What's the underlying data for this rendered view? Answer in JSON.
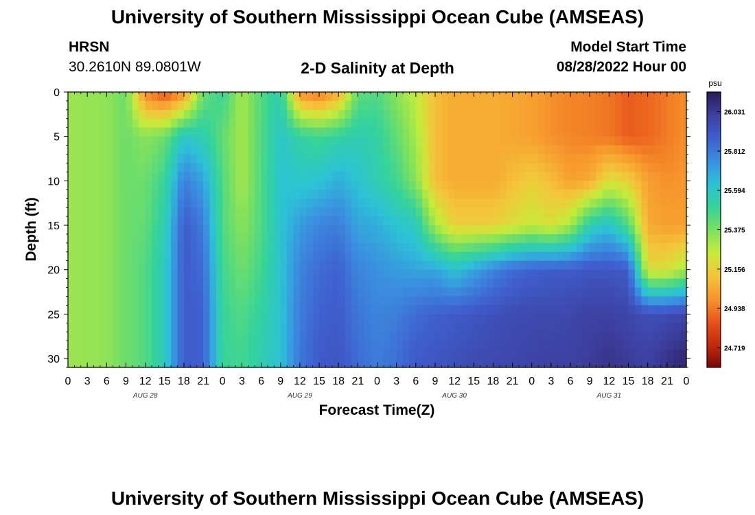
{
  "header": {
    "title": "University of Southern Mississippi Ocean Cube (AMSEAS)",
    "station": "HRSN",
    "coords": "30.2610N  89.0801W",
    "subtitle": "2-D Salinity at Depth",
    "model_start_label": "Model Start Time",
    "model_start_value": "08/28/2022 Hour 00"
  },
  "footer": {
    "title": "University of Southern Mississippi Ocean Cube (AMSEAS)"
  },
  "chart_data": {
    "type": "heatmap",
    "title": "2-D Salinity at Depth",
    "xlabel": "Forecast Time(Z)",
    "ylabel": "Depth (ft)",
    "x_range_hours": [
      0,
      96
    ],
    "y_range_ft": [
      0,
      31
    ],
    "x_tick_labels": [
      "0",
      "3",
      "6",
      "9",
      "12",
      "15",
      "18",
      "21",
      "0",
      "3",
      "6",
      "9",
      "12",
      "15",
      "18",
      "21",
      "0",
      "3",
      "6",
      "9",
      "12",
      "15",
      "18",
      "21",
      "0",
      "3",
      "6",
      "9",
      "12",
      "15",
      "18",
      "21",
      "0"
    ],
    "y_ticks": [
      0,
      5,
      10,
      15,
      20,
      25,
      30
    ],
    "day_labels": [
      {
        "label": "AUG 28",
        "hour": 12
      },
      {
        "label": "AUG 29",
        "hour": 36
      },
      {
        "label": "AUG 30",
        "hour": 60
      },
      {
        "label": "AUG 31",
        "hour": 84
      }
    ],
    "colorbar": {
      "unit": "psu",
      "min": 24.61,
      "max": 26.14,
      "tick_labels": [
        "26.031",
        "25.812",
        "25.594",
        "25.375",
        "25.156",
        "24.938",
        "24.719"
      ],
      "colors": [
        "#2b1a5a",
        "#3d3f9e",
        "#3f5fcf",
        "#3b8de0",
        "#2cc2d6",
        "#35d39a",
        "#7be060",
        "#c6ec3a",
        "#f4c53a",
        "#f7962c",
        "#e8541a",
        "#c42a0c",
        "#7a0806"
      ]
    },
    "field": {
      "description": "Salinity (psu) by forecast hour (columns, 0-96 step 3) and depth (rows, 0-30 ft step 5)",
      "hours": [
        0,
        3,
        6,
        9,
        12,
        15,
        18,
        21,
        24,
        27,
        30,
        33,
        36,
        39,
        42,
        45,
        48,
        51,
        54,
        57,
        60,
        63,
        66,
        69,
        72,
        75,
        78,
        81,
        84,
        87,
        90,
        93,
        96
      ],
      "depths": [
        0,
        5,
        10,
        15,
        20,
        25,
        30
      ],
      "values": [
        [
          25.32,
          25.33,
          25.34,
          25.4,
          24.96,
          24.85,
          24.98,
          25.4,
          25.5,
          25.3,
          25.45,
          25.55,
          24.98,
          24.92,
          25.05,
          25.42,
          25.45,
          25.35,
          25.25,
          25.1,
          25.05,
          25.05,
          25.05,
          25.04,
          25.02,
          24.98,
          24.96,
          24.95,
          24.93,
          24.88,
          24.9,
          24.94,
          24.98
        ],
        [
          25.32,
          25.33,
          25.34,
          25.4,
          25.35,
          25.4,
          25.6,
          25.55,
          25.42,
          25.3,
          25.45,
          25.6,
          25.52,
          25.48,
          25.52,
          25.55,
          25.52,
          25.42,
          25.3,
          25.1,
          25.05,
          25.05,
          25.05,
          25.04,
          25.02,
          24.98,
          24.96,
          24.95,
          24.93,
          24.88,
          24.9,
          24.94,
          24.98
        ],
        [
          25.32,
          25.33,
          25.34,
          25.4,
          25.4,
          25.5,
          25.8,
          25.7,
          25.45,
          25.3,
          25.45,
          25.62,
          25.6,
          25.62,
          25.68,
          25.62,
          25.55,
          25.48,
          25.35,
          25.1,
          25.05,
          25.05,
          25.05,
          25.1,
          25.15,
          25.1,
          25.02,
          25.05,
          25.2,
          25.15,
          25.02,
          24.98,
          25.0
        ],
        [
          25.32,
          25.33,
          25.34,
          25.4,
          25.42,
          25.55,
          25.9,
          25.8,
          25.45,
          25.35,
          25.45,
          25.62,
          25.72,
          25.78,
          25.8,
          25.7,
          25.68,
          25.62,
          25.58,
          25.3,
          25.15,
          25.15,
          25.15,
          25.2,
          25.25,
          25.2,
          25.3,
          25.55,
          25.62,
          25.45,
          25.05,
          25.02,
          25.02
        ],
        [
          25.32,
          25.33,
          25.34,
          25.4,
          25.45,
          25.58,
          25.9,
          25.85,
          25.48,
          25.4,
          25.48,
          25.62,
          25.78,
          25.85,
          25.88,
          25.78,
          25.75,
          25.72,
          25.7,
          25.7,
          25.62,
          25.7,
          25.78,
          25.85,
          25.88,
          25.9,
          25.9,
          25.92,
          25.92,
          25.9,
          25.2,
          25.2,
          25.3
        ],
        [
          25.32,
          25.33,
          25.34,
          25.4,
          25.45,
          25.58,
          25.9,
          25.88,
          25.5,
          25.45,
          25.52,
          25.62,
          25.8,
          25.88,
          25.9,
          25.82,
          25.78,
          25.8,
          25.85,
          25.88,
          25.9,
          25.92,
          25.94,
          25.96,
          25.97,
          25.97,
          25.98,
          26.0,
          26.0,
          25.98,
          25.95,
          25.96,
          25.98
        ],
        [
          25.32,
          25.33,
          25.34,
          25.4,
          25.45,
          25.58,
          25.9,
          25.88,
          25.5,
          25.48,
          25.55,
          25.62,
          25.82,
          25.9,
          25.92,
          25.85,
          25.8,
          25.84,
          25.9,
          25.92,
          25.94,
          25.96,
          25.97,
          25.98,
          25.99,
          26.0,
          26.0,
          26.02,
          26.05,
          26.02,
          26.0,
          26.05,
          26.1
        ]
      ]
    }
  }
}
